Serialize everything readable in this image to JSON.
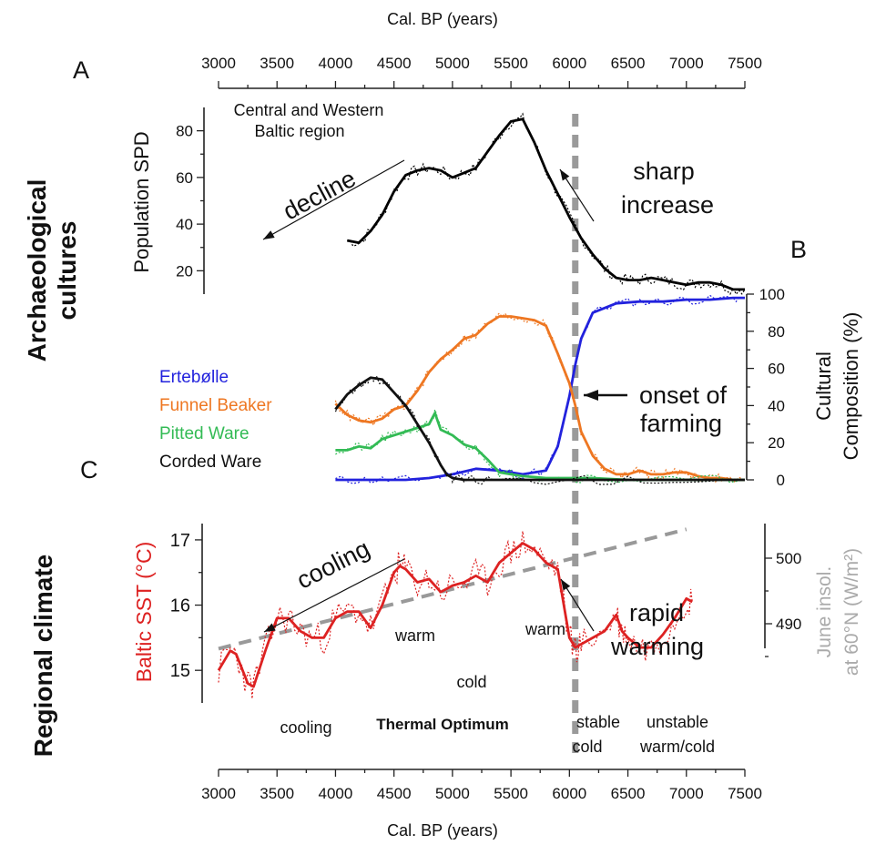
{
  "chart_data": [
    {
      "type": "line",
      "panel": "A",
      "side_label": "Archaeological cultures",
      "top_axis_label": "Cal. BP (years)",
      "x_ticks": [
        3000,
        3500,
        4000,
        4500,
        5000,
        5500,
        6000,
        6500,
        7000,
        7500
      ],
      "xlim": [
        3000,
        7500
      ],
      "ylabel": "Population SPD",
      "ylim": [
        10,
        90
      ],
      "y_ticks": [
        20,
        40,
        60,
        80
      ],
      "region_label": [
        "Central and Western",
        "Baltic region"
      ],
      "annotations": {
        "decline": "decline",
        "sharp_increase": [
          "sharp",
          "increase"
        ]
      },
      "series": [
        {
          "name": "",
          "color": "#000000",
          "x": [
            4100,
            4200,
            4300,
            4400,
            4500,
            4600,
            4700,
            4800,
            4900,
            5000,
            5100,
            5200,
            5300,
            5400,
            5500,
            5600,
            5700,
            5800,
            5900,
            6000,
            6100,
            6200,
            6300,
            6400,
            6500,
            6600,
            6700,
            6800,
            6900,
            7000,
            7100,
            7200,
            7300,
            7400,
            7500
          ],
          "values": [
            33,
            32,
            37,
            44,
            54,
            61,
            63,
            64,
            63,
            60,
            62,
            64,
            71,
            78,
            84,
            85,
            75,
            63,
            53,
            43,
            34,
            27,
            21,
            17,
            16,
            16,
            17,
            16,
            15,
            14,
            15,
            15,
            14,
            12,
            12
          ]
        }
      ]
    },
    {
      "type": "line",
      "panel": "B",
      "ylabel": [
        "Cultural",
        "Composition (%)"
      ],
      "ylim": [
        0,
        100
      ],
      "y_ticks": [
        0,
        20,
        40,
        60,
        80,
        100
      ],
      "annotation": [
        "onset of",
        "farming"
      ],
      "series": [
        {
          "name": "Ertebølle",
          "color": "#2222dd",
          "x": [
            4000,
            4200,
            4400,
            4600,
            4800,
            5000,
            5200,
            5400,
            5600,
            5800,
            5900,
            6000,
            6050,
            6100,
            6200,
            6400,
            6600,
            6800,
            7000,
            7200,
            7400,
            7500
          ],
          "values": [
            0,
            0,
            0,
            0,
            1,
            3,
            6,
            5,
            3,
            5,
            18,
            45,
            62,
            76,
            90,
            95,
            96,
            96,
            97,
            97,
            98,
            98
          ]
        },
        {
          "name": "Funnel Beaker",
          "color": "#ee7722",
          "x": [
            4000,
            4100,
            4200,
            4300,
            4400,
            4500,
            4600,
            4700,
            4800,
            4900,
            5000,
            5100,
            5200,
            5300,
            5400,
            5500,
            5600,
            5700,
            5800,
            5900,
            6000,
            6050,
            6100,
            6200,
            6300,
            6400,
            6500,
            6600,
            6700,
            6800,
            6900,
            7000,
            7100,
            7200,
            7300,
            7400,
            7500
          ],
          "values": [
            41,
            35,
            32,
            31,
            33,
            38,
            40,
            48,
            58,
            65,
            70,
            76,
            78,
            84,
            88,
            88,
            87,
            86,
            83,
            68,
            52,
            40,
            26,
            13,
            6,
            3,
            3,
            5,
            3,
            3,
            4,
            4,
            2,
            1,
            1,
            0,
            0
          ]
        },
        {
          "name": "Pitted Ware",
          "color": "#33bb55",
          "x": [
            4000,
            4100,
            4200,
            4300,
            4400,
            4500,
            4600,
            4700,
            4800,
            4850,
            4900,
            5000,
            5100,
            5200,
            5300,
            5400,
            5500,
            5600,
            5800,
            6000,
            6200,
            6500,
            7000,
            7500
          ],
          "values": [
            16,
            16,
            18,
            17,
            22,
            24,
            26,
            28,
            30,
            36,
            27,
            24,
            19,
            17,
            11,
            4,
            3,
            2,
            1,
            1,
            1,
            0,
            0,
            0
          ]
        },
        {
          "name": "Corded Ware",
          "color": "#111111",
          "x": [
            4000,
            4100,
            4200,
            4300,
            4400,
            4500,
            4600,
            4700,
            4800,
            4900,
            4950,
            5000,
            5100,
            5200,
            5400,
            5600,
            6000,
            6500,
            7000,
            7500
          ],
          "values": [
            38,
            46,
            51,
            55,
            54,
            47,
            40,
            30,
            20,
            8,
            3,
            1,
            0,
            0,
            0,
            0,
            0,
            0,
            0,
            0
          ]
        }
      ]
    },
    {
      "type": "line",
      "panel": "C",
      "side_label": "Regional climate",
      "xlabel": "Cal. BP (years)",
      "x_ticks": [
        3000,
        3500,
        4000,
        4500,
        5000,
        5500,
        6000,
        6500,
        7000,
        7500
      ],
      "xlim": [
        3000,
        7500
      ],
      "ylabel": "Baltic SST (°C)",
      "ylim": [
        14.5,
        17.25
      ],
      "y_ticks": [
        15,
        16,
        17
      ],
      "y2label": [
        "June insol.",
        "at 60°N (W/m²)"
      ],
      "y2_ticks": [
        490,
        500
      ],
      "y2lim": [
        484.8,
        504.6
      ],
      "annotations": {
        "cooling_arrow": "cooling",
        "rapid_warming": [
          "rapid",
          "warming"
        ],
        "warm_1": "warm",
        "warm_2": "warm",
        "cold": "cold",
        "thermal_optimum": "Thermal Optimum",
        "cooling_low": "cooling",
        "stable_cold": [
          "stable",
          "cold"
        ],
        "unstable": [
          "unstable",
          "warm/cold"
        ]
      },
      "series": [
        {
          "name": "",
          "color": "#dd2222",
          "x": [
            3000,
            3100,
            3150,
            3250,
            3300,
            3400,
            3500,
            3600,
            3700,
            3800,
            3900,
            4000,
            4100,
            4200,
            4300,
            4400,
            4500,
            4550,
            4600,
            4700,
            4800,
            4900,
            5000,
            5100,
            5200,
            5300,
            5400,
            5500,
            5600,
            5700,
            5800,
            5900,
            6000,
            6050,
            6100,
            6200,
            6300,
            6400,
            6450,
            6500,
            6600,
            6700,
            6800,
            6900,
            7000,
            7050
          ],
          "values": [
            15.0,
            15.3,
            15.25,
            14.8,
            14.75,
            15.3,
            15.8,
            15.8,
            15.6,
            15.5,
            15.5,
            15.8,
            15.9,
            15.9,
            15.65,
            16.0,
            16.5,
            16.6,
            16.55,
            16.35,
            16.4,
            16.2,
            16.3,
            16.35,
            16.45,
            16.35,
            16.65,
            16.8,
            16.95,
            16.85,
            16.65,
            16.55,
            15.5,
            15.35,
            15.4,
            15.5,
            15.6,
            15.85,
            15.6,
            15.5,
            15.35,
            15.35,
            15.55,
            15.8,
            16.1,
            16.05
          ]
        },
        {
          "name": "",
          "color": "#999999",
          "axis": "y2",
          "style": "dashed",
          "x": [
            3000,
            7000
          ],
          "values": [
            486.2,
            504.4
          ]
        }
      ]
    }
  ],
  "axes_common": {
    "grid": false,
    "divider_at": 6050
  }
}
